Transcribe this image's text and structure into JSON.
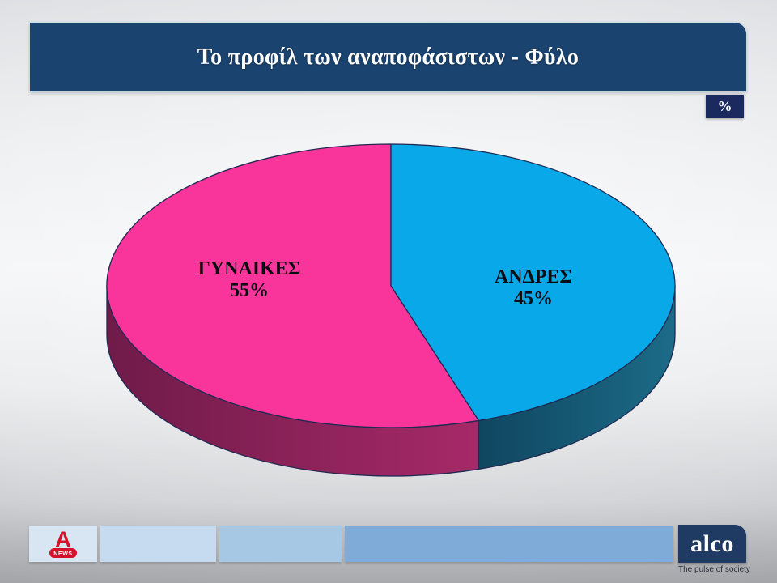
{
  "title": "Το προφίλ των αναποφάσιστων - Φύλο",
  "unit_badge": "%",
  "chart_data": {
    "type": "pie",
    "style": "3d",
    "title": "Το προφίλ των αναποφάσιστων - Φύλο",
    "unit": "%",
    "start_angle_deg": 162,
    "direction": "clockwise",
    "legend_position": "none",
    "labels_on_chart": true,
    "slices": [
      {
        "label": "ΓΥΝΑΙΚΕΣ",
        "value": 55,
        "display": "55%",
        "color": "#F9359B",
        "side_color": "#A62968",
        "side_color_dark": "#6F1B49"
      },
      {
        "label": "ΑΝΔΡΕΣ",
        "value": 45,
        "display": "45%",
        "color": "#09A9E9",
        "side_color": "#1C6B88",
        "side_color_dark": "#0F465F"
      }
    ]
  },
  "colors": {
    "title_bar": "#1B436F",
    "badge_bg": "#1A295E",
    "wedge_stroke": "#1F2A52",
    "alpha_red": "#D8112B",
    "alco_navy": "#1F3B63",
    "footer_bar_1": "#D8E6F3",
    "footer_bar_2": "#C6DBEF",
    "footer_bar_3": "#A6C8E5",
    "footer_bar_4": "#7FABD8"
  },
  "footer": {
    "alpha_news": {
      "letter": "A",
      "news_label": "NEWS"
    },
    "alco": {
      "name": "alco",
      "tagline": "The pulse of society"
    }
  }
}
